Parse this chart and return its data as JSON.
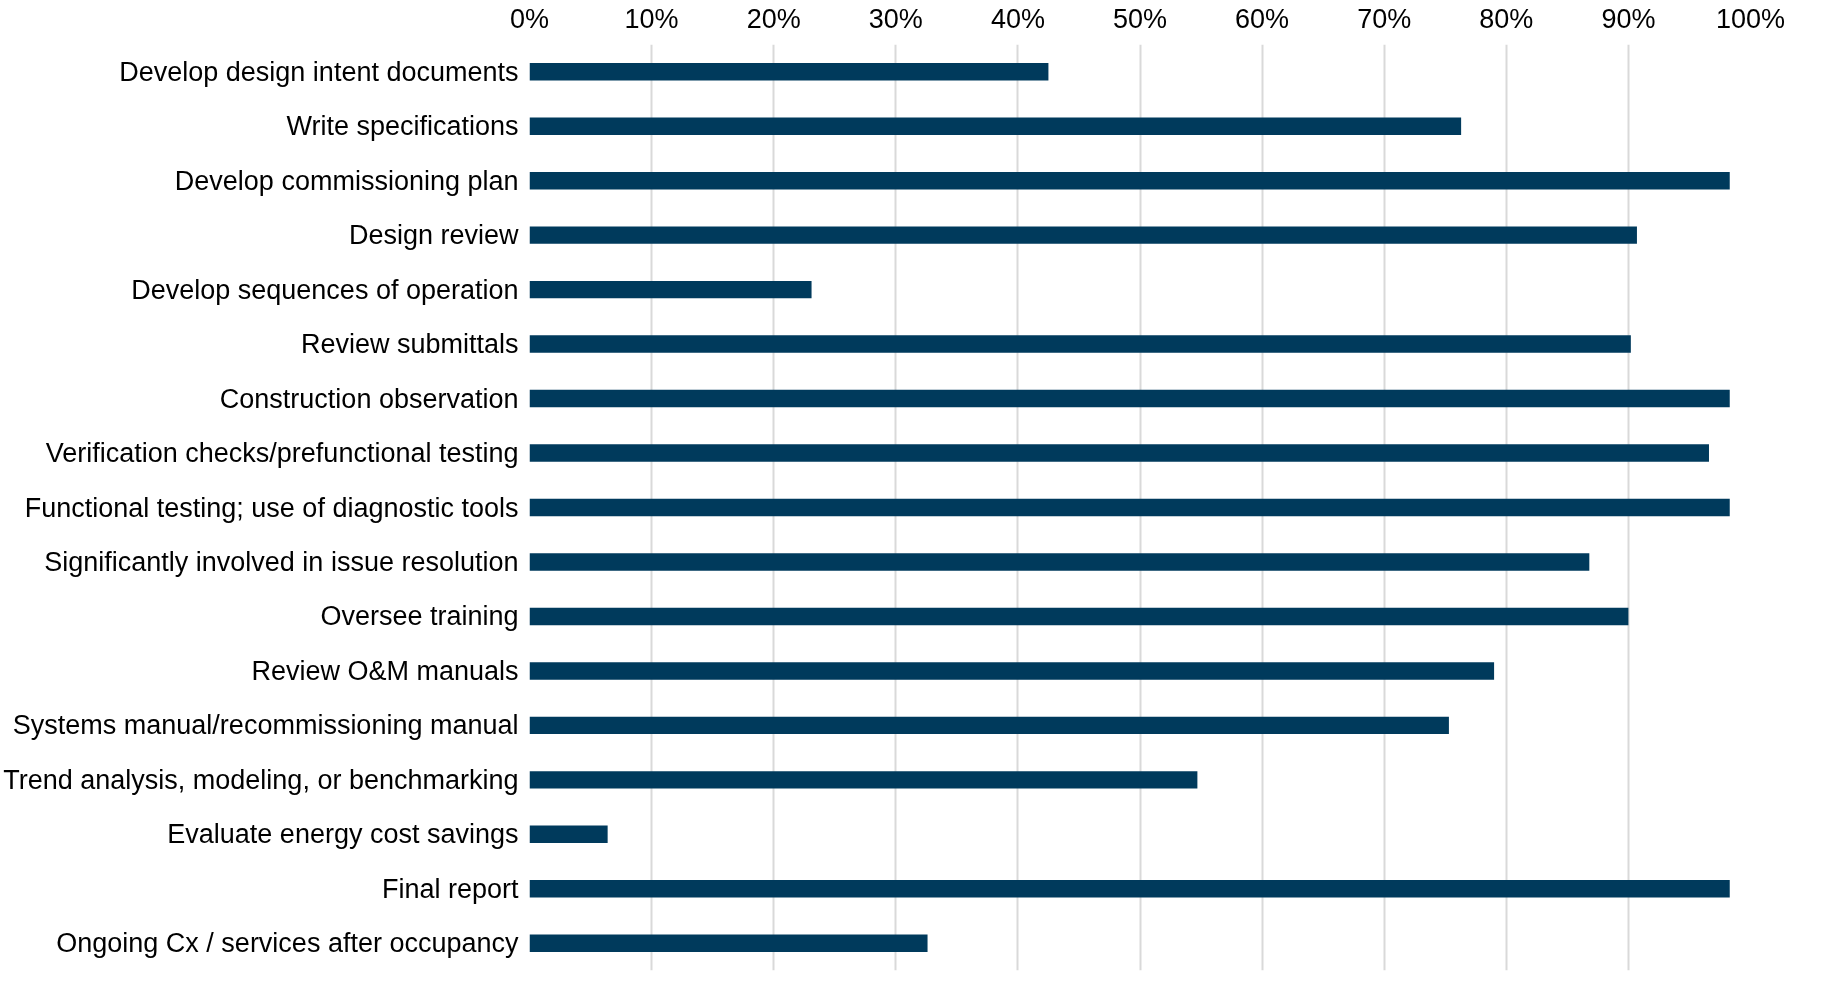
{
  "chart_data": {
    "type": "bar",
    "orientation": "horizontal",
    "categories": [
      "Develop design intent documents",
      "Write specifications",
      "Develop commissioning plan",
      "Design review",
      "Develop sequences of operation",
      "Review submittals",
      "Construction observation",
      "Verification checks/prefunctional testing",
      "Functional testing; use of diagnostic tools",
      "Significantly involved in issue resolution",
      "Oversee training",
      "Review O&M manuals",
      "Systems manual/recommissioning manual",
      "Trend analysis, modeling, or benchmarking",
      "Evaluate energy cost savings",
      "Final report",
      "Ongoing Cx / services after occupancy"
    ],
    "values": [
      42.5,
      76.3,
      98.3,
      90.7,
      23.1,
      90.2,
      98.3,
      96.6,
      98.3,
      86.8,
      90.0,
      79.0,
      75.3,
      54.7,
      6.4,
      98.3,
      32.6
    ],
    "color": "#003a5c",
    "xlim": [
      0,
      100
    ],
    "xticks": [
      {
        "value": 0,
        "label": "0%"
      },
      {
        "value": 10,
        "label": "10%"
      },
      {
        "value": 20,
        "label": "20%"
      },
      {
        "value": 30,
        "label": "30%"
      },
      {
        "value": 40,
        "label": "40%"
      },
      {
        "value": 50,
        "label": "50%"
      },
      {
        "value": 60,
        "label": "60%"
      },
      {
        "value": 70,
        "label": "70%"
      },
      {
        "value": 80,
        "label": "80%"
      },
      {
        "value": 90,
        "label": "90%"
      },
      {
        "value": 100,
        "label": "100%"
      }
    ],
    "grid": "x"
  }
}
